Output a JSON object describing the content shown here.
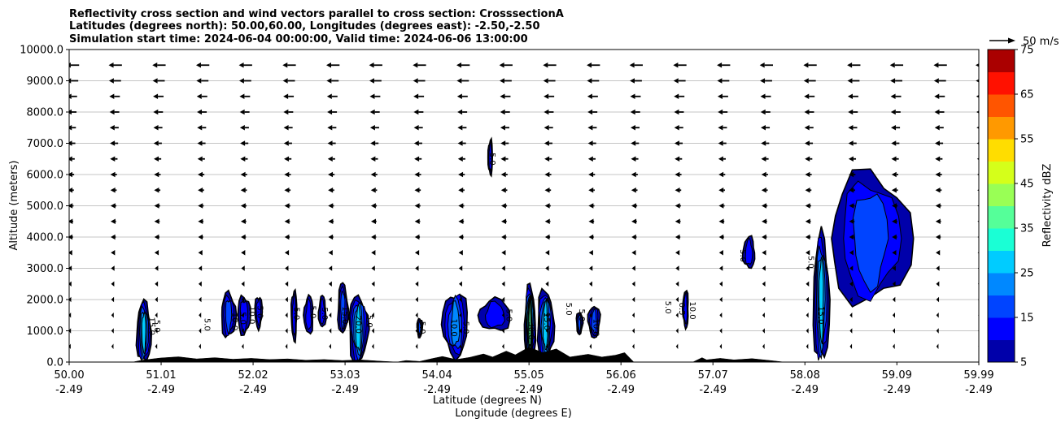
{
  "title_lines": [
    "Reflectivity cross section and wind vectors parallel to cross section: CrosssectionA",
    "Latitudes (degrees north): 50.00,60.00, Longitudes (degrees east): -2.50,-2.50",
    "Simulation start time: 2024-06-04 00:00:00, Valid time: 2024-06-06 13:00:00"
  ],
  "chart_data": {
    "type": "heatmap",
    "xlabel": "Latitude (degrees N)",
    "xlabel2": "Longitude (degrees E)",
    "ylabel": "Altitude (meters)",
    "xlim": [
      50.0,
      59.99
    ],
    "ylim": [
      0,
      10000
    ],
    "x_ticks": [
      {
        "lat": 50.0,
        "lat_label": "50.00",
        "lon_label": "-2.49"
      },
      {
        "lat": 51.01,
        "lat_label": "51.01",
        "lon_label": "-2.49"
      },
      {
        "lat": 52.02,
        "lat_label": "52.02",
        "lon_label": "-2.49"
      },
      {
        "lat": 53.03,
        "lat_label": "53.03",
        "lon_label": "-2.49"
      },
      {
        "lat": 54.04,
        "lat_label": "54.04",
        "lon_label": "-2.49"
      },
      {
        "lat": 55.05,
        "lat_label": "55.05",
        "lon_label": "-2.49"
      },
      {
        "lat": 56.06,
        "lat_label": "56.06",
        "lon_label": "-2.49"
      },
      {
        "lat": 57.07,
        "lat_label": "57.07",
        "lon_label": "-2.49"
      },
      {
        "lat": 58.08,
        "lat_label": "58.08",
        "lon_label": "-2.49"
      },
      {
        "lat": 59.09,
        "lat_label": "59.09",
        "lon_label": "-2.49"
      },
      {
        "lat": 59.99,
        "lat_label": "59.99",
        "lon_label": "-2.49"
      }
    ],
    "y_ticks": [
      {
        "value": 0,
        "label": "0.0"
      },
      {
        "value": 1000,
        "label": "1000.0"
      },
      {
        "value": 2000,
        "label": "2000.0"
      },
      {
        "value": 3000,
        "label": "3000.0"
      },
      {
        "value": 4000,
        "label": "4000.0"
      },
      {
        "value": 5000,
        "label": "5000.0"
      },
      {
        "value": 6000,
        "label": "6000.0"
      },
      {
        "value": 7000,
        "label": "7000.0"
      },
      {
        "value": 8000,
        "label": "8000.0"
      },
      {
        "value": 9000,
        "label": "9000.0"
      },
      {
        "value": 10000,
        "label": "10000.0"
      }
    ],
    "grid": "horizontal",
    "colorbar": {
      "label": "Reflectivity dBZ",
      "levels": [
        5,
        10,
        15,
        20,
        25,
        30,
        35,
        40,
        45,
        50,
        55,
        60,
        65,
        70,
        75
      ],
      "tick_labels": [
        "5",
        "15",
        "25",
        "35",
        "45",
        "55",
        "65",
        "75"
      ],
      "tick_values": [
        5,
        15,
        25,
        35,
        45,
        55,
        65,
        75
      ],
      "colors": [
        "#0000aa",
        "#0000ff",
        "#0044ff",
        "#0088ff",
        "#00ccff",
        "#1affd5",
        "#55ff99",
        "#99ff55",
        "#d5ff1a",
        "#ffdd00",
        "#ff9900",
        "#ff5500",
        "#ff1100",
        "#aa0000"
      ]
    },
    "wind_vector_key": {
      "label": "50 m/s",
      "speed": 50
    },
    "wind_levels_m": [
      500,
      1000,
      1500,
      2000,
      2500,
      3000,
      3500,
      4000,
      4500,
      5000,
      5500,
      6000,
      6500,
      7000,
      7500,
      8000,
      8500,
      9000,
      9500
    ],
    "wind_lats": [
      50.0,
      50.47,
      50.95,
      51.43,
      51.9,
      52.38,
      52.86,
      53.33,
      53.81,
      54.29,
      54.76,
      55.24,
      55.72,
      56.19,
      56.67,
      57.15,
      57.62,
      58.1,
      58.58,
      59.05,
      59.53,
      59.99
    ],
    "wind_speed_profile": [
      {
        "alt": 500,
        "u": -6
      },
      {
        "alt": 1000,
        "u": -7
      },
      {
        "alt": 1500,
        "u": -7
      },
      {
        "alt": 2000,
        "u": -8
      },
      {
        "alt": 2500,
        "u": -9
      },
      {
        "alt": 3000,
        "u": -10
      },
      {
        "alt": 3500,
        "u": -12
      },
      {
        "alt": 4000,
        "u": -13
      },
      {
        "alt": 4500,
        "u": -14
      },
      {
        "alt": 5000,
        "u": -15
      },
      {
        "alt": 5500,
        "u": -16
      },
      {
        "alt": 6000,
        "u": -17
      },
      {
        "alt": 6500,
        "u": -19
      },
      {
        "alt": 7000,
        "u": -21
      },
      {
        "alt": 7500,
        "u": -23
      },
      {
        "alt": 8000,
        "u": -25
      },
      {
        "alt": 8500,
        "u": -27
      },
      {
        "alt": 9000,
        "u": -31
      },
      {
        "alt": 9500,
        "u": -34
      }
    ],
    "terrain": [
      [
        50.0,
        0
      ],
      [
        50.7,
        0
      ],
      [
        50.8,
        60
      ],
      [
        51.0,
        130
      ],
      [
        51.2,
        170
      ],
      [
        51.4,
        100
      ],
      [
        51.6,
        140
      ],
      [
        51.8,
        90
      ],
      [
        52.0,
        120
      ],
      [
        52.2,
        80
      ],
      [
        52.4,
        100
      ],
      [
        52.6,
        60
      ],
      [
        52.8,
        80
      ],
      [
        53.0,
        50
      ],
      [
        53.2,
        70
      ],
      [
        53.4,
        30
      ],
      [
        53.6,
        0
      ],
      [
        53.7,
        50
      ],
      [
        53.85,
        20
      ],
      [
        54.0,
        120
      ],
      [
        54.1,
        180
      ],
      [
        54.25,
        80
      ],
      [
        54.4,
        150
      ],
      [
        54.55,
        260
      ],
      [
        54.65,
        160
      ],
      [
        54.8,
        350
      ],
      [
        54.9,
        230
      ],
      [
        55.05,
        480
      ],
      [
        55.2,
        300
      ],
      [
        55.35,
        420
      ],
      [
        55.5,
        160
      ],
      [
        55.7,
        250
      ],
      [
        55.85,
        160
      ],
      [
        56.0,
        220
      ],
      [
        56.1,
        300
      ],
      [
        56.2,
        0
      ],
      [
        56.85,
        0
      ],
      [
        56.95,
        140
      ],
      [
        57.0,
        70
      ],
      [
        57.15,
        120
      ],
      [
        57.3,
        70
      ],
      [
        57.5,
        110
      ],
      [
        57.7,
        50
      ],
      [
        57.85,
        0
      ],
      [
        59.99,
        0
      ]
    ],
    "reflectivity_cells": [
      {
        "lat_min": 50.74,
        "lat_max": 50.9,
        "alt_min": 0,
        "alt_max": 1900,
        "peak_dbz": 25
      },
      {
        "lat_min": 51.67,
        "lat_max": 51.83,
        "alt_min": 800,
        "alt_max": 2200,
        "peak_dbz": 15
      },
      {
        "lat_min": 51.85,
        "lat_max": 51.99,
        "alt_min": 900,
        "alt_max": 2100,
        "peak_dbz": 10
      },
      {
        "lat_min": 52.04,
        "lat_max": 52.12,
        "alt_min": 1100,
        "alt_max": 2100,
        "peak_dbz": 10
      },
      {
        "lat_min": 52.44,
        "lat_max": 52.5,
        "alt_min": 700,
        "alt_max": 2300,
        "peak_dbz": 10
      },
      {
        "lat_min": 52.58,
        "lat_max": 52.68,
        "alt_min": 900,
        "alt_max": 2100,
        "peak_dbz": 10
      },
      {
        "lat_min": 52.74,
        "lat_max": 52.82,
        "alt_min": 1100,
        "alt_max": 2100,
        "peak_dbz": 10
      },
      {
        "lat_min": 52.95,
        "lat_max": 53.06,
        "alt_min": 900,
        "alt_max": 2500,
        "peak_dbz": 15
      },
      {
        "lat_min": 53.07,
        "lat_max": 53.28,
        "alt_min": 0,
        "alt_max": 2100,
        "peak_dbz": 25
      },
      {
        "lat_min": 53.82,
        "lat_max": 53.88,
        "alt_min": 800,
        "alt_max": 1400,
        "peak_dbz": 15
      },
      {
        "lat_min": 54.1,
        "lat_max": 54.38,
        "alt_min": 200,
        "alt_max": 2200,
        "peak_dbz": 20
      },
      {
        "lat_min": 54.6,
        "lat_max": 54.65,
        "alt_min": 6000,
        "alt_max": 7100,
        "peak_dbz": 10
      },
      {
        "lat_min": 54.5,
        "lat_max": 54.85,
        "alt_min": 1000,
        "alt_max": 2000,
        "peak_dbz": 10
      },
      {
        "lat_min": 55.0,
        "lat_max": 55.12,
        "alt_min": 0,
        "alt_max": 2400,
        "peak_dbz": 35
      },
      {
        "lat_min": 55.14,
        "lat_max": 55.32,
        "alt_min": 0,
        "alt_max": 2300,
        "peak_dbz": 25
      },
      {
        "lat_min": 55.57,
        "lat_max": 55.64,
        "alt_min": 900,
        "alt_max": 1600,
        "peak_dbz": 15
      },
      {
        "lat_min": 55.7,
        "lat_max": 55.83,
        "alt_min": 800,
        "alt_max": 1800,
        "peak_dbz": 15
      },
      {
        "lat_min": 56.74,
        "lat_max": 56.8,
        "alt_min": 1100,
        "alt_max": 2300,
        "peak_dbz": 10
      },
      {
        "lat_min": 57.4,
        "lat_max": 57.53,
        "alt_min": 3000,
        "alt_max": 4000,
        "peak_dbz": 10
      },
      {
        "lat_min": 58.17,
        "lat_max": 58.35,
        "alt_min": 0,
        "alt_max": 4000,
        "peak_dbz": 25
      },
      {
        "lat_min": 58.35,
        "lat_max": 59.25,
        "alt_min": 1900,
        "alt_max": 6000,
        "peak_dbz": 15
      }
    ],
    "contour_labels": [
      {
        "lat": 50.88,
        "alt": 1150,
        "text": "15.0"
      },
      {
        "lat": 50.94,
        "alt": 1150,
        "text": "5.0"
      },
      {
        "lat": 51.49,
        "alt": 1200,
        "text": "5.0"
      },
      {
        "lat": 51.79,
        "alt": 1300,
        "text": "10.0"
      },
      {
        "lat": 51.88,
        "alt": 1400,
        "text": "5.0"
      },
      {
        "lat": 51.98,
        "alt": 1500,
        "text": "10.0"
      },
      {
        "lat": 52.07,
        "alt": 1600,
        "text": "5.0"
      },
      {
        "lat": 52.47,
        "alt": 1550,
        "text": "5.0"
      },
      {
        "lat": 52.65,
        "alt": 1600,
        "text": "5.0"
      },
      {
        "lat": 52.78,
        "alt": 1550,
        "text": "5.0"
      },
      {
        "lat": 53.0,
        "alt": 1500,
        "text": "15.0"
      },
      {
        "lat": 53.15,
        "alt": 1200,
        "text": "20.0"
      },
      {
        "lat": 53.27,
        "alt": 1300,
        "text": "5.0"
      },
      {
        "lat": 53.85,
        "alt": 1100,
        "text": "5.0"
      },
      {
        "lat": 54.2,
        "alt": 1100,
        "text": "10.0"
      },
      {
        "lat": 54.33,
        "alt": 1100,
        "text": "5.0"
      },
      {
        "lat": 54.62,
        "alt": 6500,
        "text": "5.0"
      },
      {
        "lat": 54.8,
        "alt": 1500,
        "text": "5.0"
      },
      {
        "lat": 55.05,
        "alt": 1000,
        "text": "30.0"
      },
      {
        "lat": 55.22,
        "alt": 1300,
        "text": "15.0"
      },
      {
        "lat": 55.46,
        "alt": 1700,
        "text": "5.0"
      },
      {
        "lat": 55.6,
        "alt": 1500,
        "text": "5.0"
      },
      {
        "lat": 55.76,
        "alt": 1100,
        "text": "10.0"
      },
      {
        "lat": 56.55,
        "alt": 1750,
        "text": "5.0"
      },
      {
        "lat": 56.7,
        "alt": 1700,
        "text": "0.5"
      },
      {
        "lat": 56.82,
        "alt": 1650,
        "text": "10.0"
      },
      {
        "lat": 57.37,
        "alt": 3400,
        "text": "5.0"
      },
      {
        "lat": 58.12,
        "alt": 3200,
        "text": "5.0"
      },
      {
        "lat": 58.23,
        "alt": 1500,
        "text": "15.0"
      }
    ]
  }
}
